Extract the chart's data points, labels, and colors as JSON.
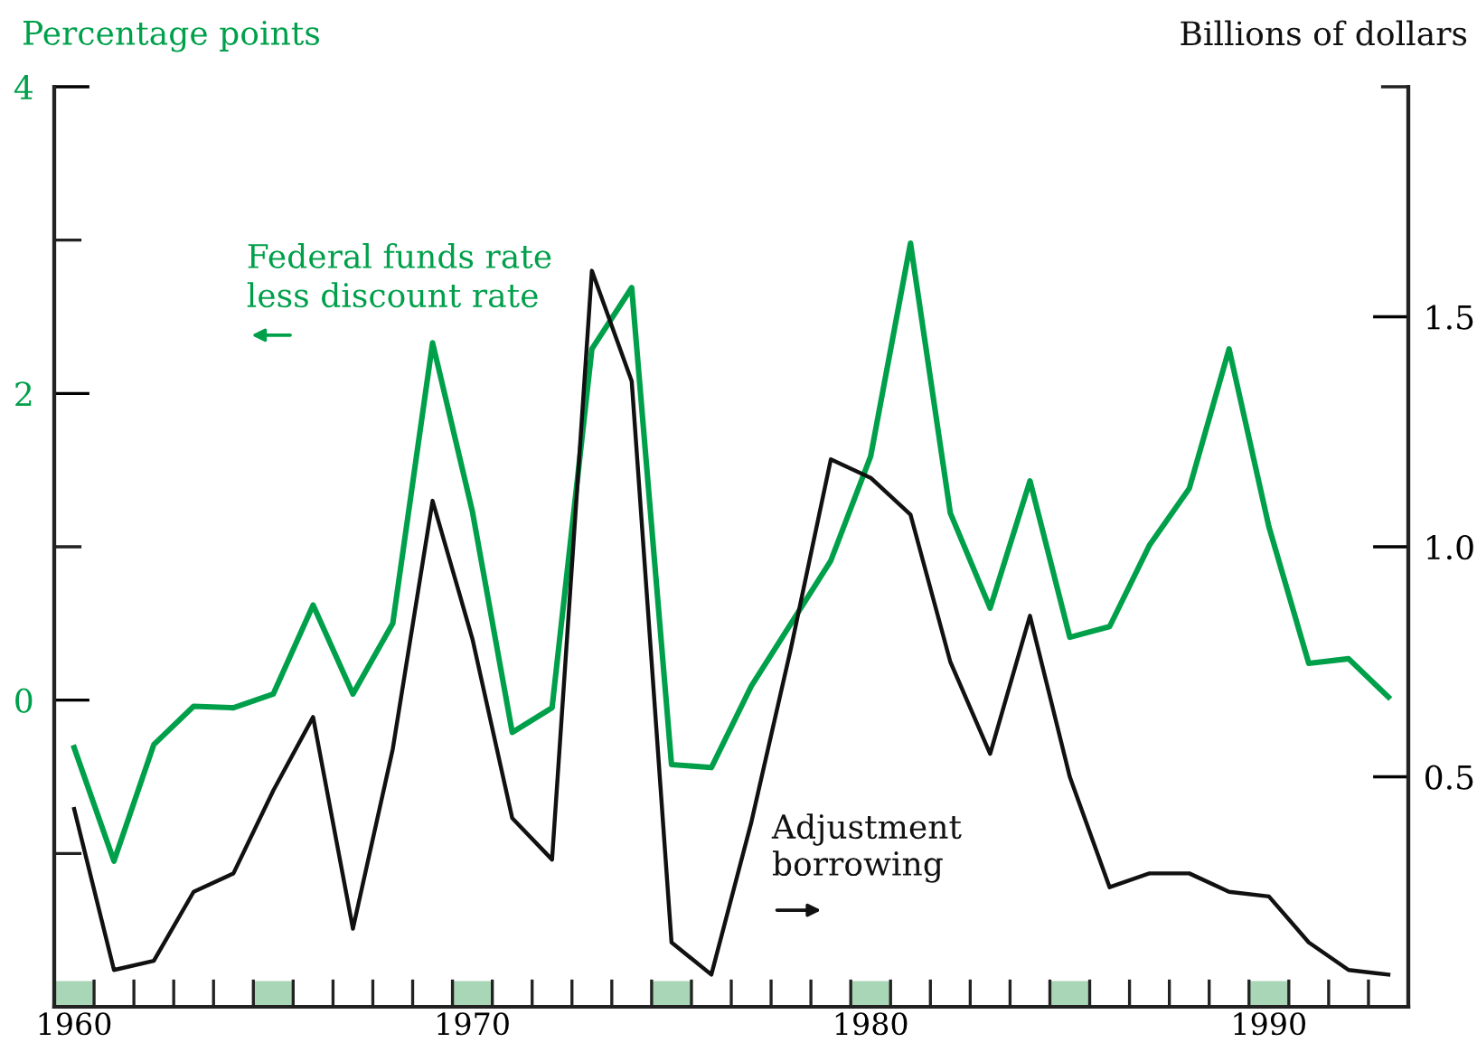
{
  "chart_data": {
    "type": "line",
    "ylabel": "Percentage points",
    "y2label": "Billions of dollars",
    "x": [
      1960,
      1961,
      1962,
      1963,
      1964,
      1965,
      1966,
      1967,
      1968,
      1969,
      1970,
      1971,
      1972,
      1973,
      1974,
      1975,
      1976,
      1977,
      1978,
      1979,
      1980,
      1981,
      1982,
      1983,
      1984,
      1985,
      1986,
      1987,
      1988,
      1989,
      1990,
      1991,
      1992,
      1993
    ],
    "series": [
      {
        "name": "Federal funds rate\nless discount rate",
        "color": "#00a04b",
        "axis": "y",
        "values": [
          -0.31,
          -1.05,
          -0.29,
          -0.04,
          -0.05,
          0.04,
          0.62,
          0.04,
          0.5,
          2.33,
          1.23,
          -0.21,
          -0.05,
          2.29,
          2.69,
          -0.42,
          -0.44,
          0.09,
          0.5,
          0.91,
          1.59,
          2.98,
          1.22,
          0.6,
          1.43,
          0.41,
          0.48,
          1.01,
          1.38,
          2.29,
          1.13,
          0.24,
          0.27,
          0.02
        ]
      },
      {
        "name": "Adjustment\nborrowing",
        "color": "#111111",
        "axis": "y2",
        "values": [
          0.43,
          0.08,
          0.1,
          0.25,
          0.29,
          0.47,
          0.63,
          0.17,
          0.56,
          1.1,
          0.8,
          0.41,
          0.32,
          1.6,
          1.36,
          0.14,
          0.07,
          0.4,
          0.78,
          1.19,
          1.15,
          1.07,
          0.75,
          0.55,
          0.85,
          0.5,
          0.26,
          0.29,
          0.29,
          0.25,
          0.24,
          0.14,
          0.08,
          0.07
        ]
      }
    ],
    "xlim": [
      1959.5,
      1993.5
    ],
    "xticks": [
      {
        "value": 1960,
        "label": "1960"
      },
      {
        "value": 1970,
        "label": "1970"
      },
      {
        "value": 1980,
        "label": "1980"
      },
      {
        "value": 1990,
        "label": "1990"
      },
      {
        "value": 1960.5,
        "label": null
      },
      {
        "value": 1961.5,
        "label": null
      },
      {
        "value": 1962.5,
        "label": null
      },
      {
        "value": 1963.5,
        "label": null
      },
      {
        "value": 1964.5,
        "label": null
      },
      {
        "value": 1965.5,
        "label": null
      },
      {
        "value": 1966.5,
        "label": null
      },
      {
        "value": 1967.5,
        "label": null
      },
      {
        "value": 1968.5,
        "label": null
      },
      {
        "value": 1969.5,
        "label": null
      },
      {
        "value": 1970.5,
        "label": null
      },
      {
        "value": 1971.5,
        "label": null
      },
      {
        "value": 1972.5,
        "label": null
      },
      {
        "value": 1973.5,
        "label": null
      },
      {
        "value": 1974.5,
        "label": null
      },
      {
        "value": 1975.5,
        "label": null
      },
      {
        "value": 1976.5,
        "label": null
      },
      {
        "value": 1977.5,
        "label": null
      },
      {
        "value": 1978.5,
        "label": null
      },
      {
        "value": 1979.5,
        "label": null
      },
      {
        "value": 1980.5,
        "label": null
      },
      {
        "value": 1981.5,
        "label": null
      },
      {
        "value": 1982.5,
        "label": null
      },
      {
        "value": 1983.5,
        "label": null
      },
      {
        "value": 1984.5,
        "label": null
      },
      {
        "value": 1985.5,
        "label": null
      },
      {
        "value": 1986.5,
        "label": null
      },
      {
        "value": 1987.5,
        "label": null
      },
      {
        "value": 1988.5,
        "label": null
      },
      {
        "value": 1989.5,
        "label": null
      },
      {
        "value": 1990.5,
        "label": null
      },
      {
        "value": 1991.5,
        "label": null
      },
      {
        "value": 1992.5,
        "label": null
      }
    ],
    "ylim": [
      -2,
      4
    ],
    "yticks": [
      4,
      {
        "value": 3,
        "label": null
      },
      2,
      {
        "value": 1,
        "label": null
      },
      0,
      {
        "value": -1,
        "label": null
      }
    ],
    "y2lim": [
      0,
      2
    ],
    "y2ticks": [
      {
        "value": 0.5,
        "label": "0.5"
      },
      {
        "value": 1.0,
        "label": "1.0"
      },
      {
        "value": 1.5,
        "label": "1.5"
      },
      {
        "value": 2,
        "label": null
      }
    ],
    "grid": false,
    "legend": false,
    "marker": "none",
    "line_style": "solid"
  }
}
